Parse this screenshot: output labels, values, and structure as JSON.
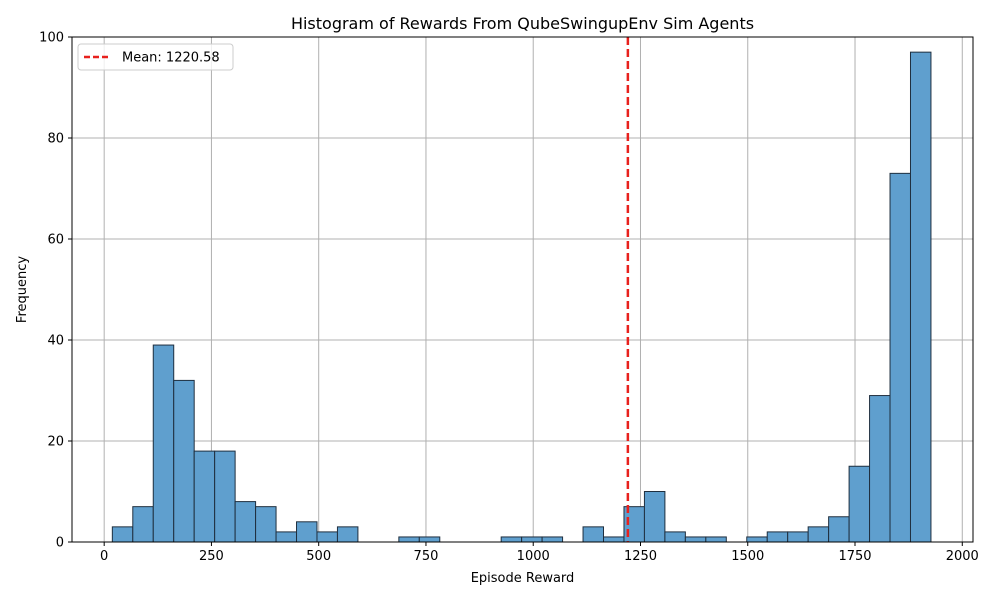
{
  "chart_data": {
    "type": "bar",
    "title": "Histogram of Rewards From QubeSwingupEnv Sim Agents",
    "xlabel": "Episode Reward",
    "ylabel": "Frequency",
    "xlim": [
      -75,
      2025
    ],
    "ylim": [
      0,
      100
    ],
    "xticks": [
      0,
      250,
      500,
      750,
      1000,
      1250,
      1500,
      1750,
      2000
    ],
    "yticks": [
      0,
      20,
      40,
      60,
      80,
      100
    ],
    "grid": true,
    "bar_color": "#5f9fce",
    "bar_edge_color": "#1f2f3f",
    "bin_start": 19,
    "bin_width": 47.7,
    "counts": [
      3,
      7,
      39,
      32,
      18,
      18,
      8,
      7,
      2,
      4,
      2,
      3,
      0,
      0,
      1,
      1,
      0,
      0,
      0,
      1,
      1,
      1,
      0,
      3,
      1,
      7,
      10,
      2,
      1,
      1,
      0,
      1,
      2,
      2,
      3,
      5,
      15,
      29,
      73,
      97
    ],
    "mean_line": {
      "value": 1220.58,
      "label": "Mean: 1220.58",
      "color": "#e8211d"
    },
    "legend_position": "top-left"
  }
}
